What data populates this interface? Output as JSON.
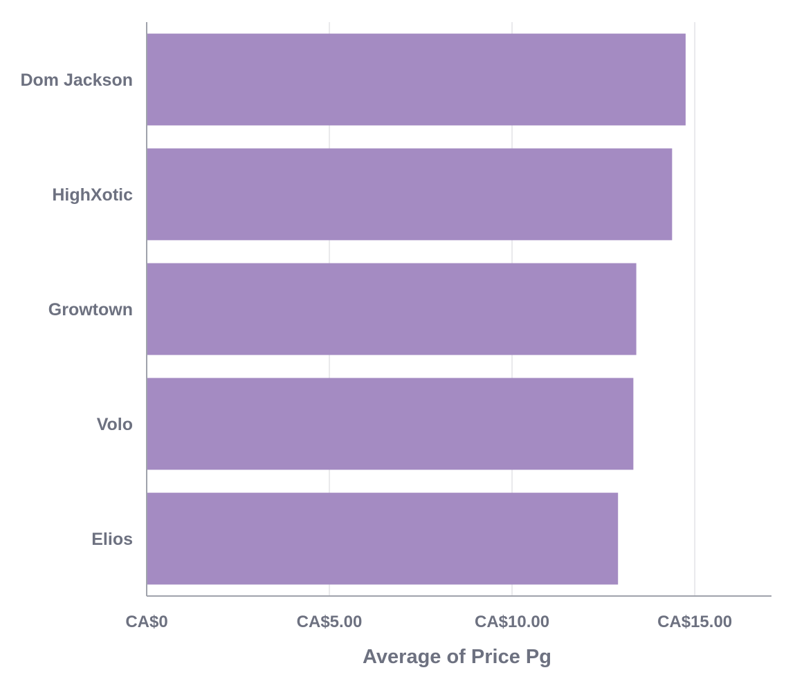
{
  "chart_data": {
    "type": "bar",
    "orientation": "horizontal",
    "categories": [
      "Dom Jackson",
      "HighXotic",
      "Growtown",
      "Volo",
      "Elios"
    ],
    "values": [
      14.75,
      14.38,
      13.4,
      13.32,
      12.9
    ],
    "xlabel": "Average of Price Pg",
    "ylabel": "",
    "xlim": [
      0,
      17.1
    ],
    "x_ticks": [
      0,
      5,
      10,
      15
    ],
    "x_tick_labels": [
      "CA$0",
      "CA$5.00",
      "CA$10.00",
      "CA$15.00"
    ],
    "grid": "vertical",
    "bar_color": "#a48bc2",
    "text_color": "#6d7180",
    "axis_color": "#9fa2ab",
    "grid_color": "#e9e9ec"
  }
}
